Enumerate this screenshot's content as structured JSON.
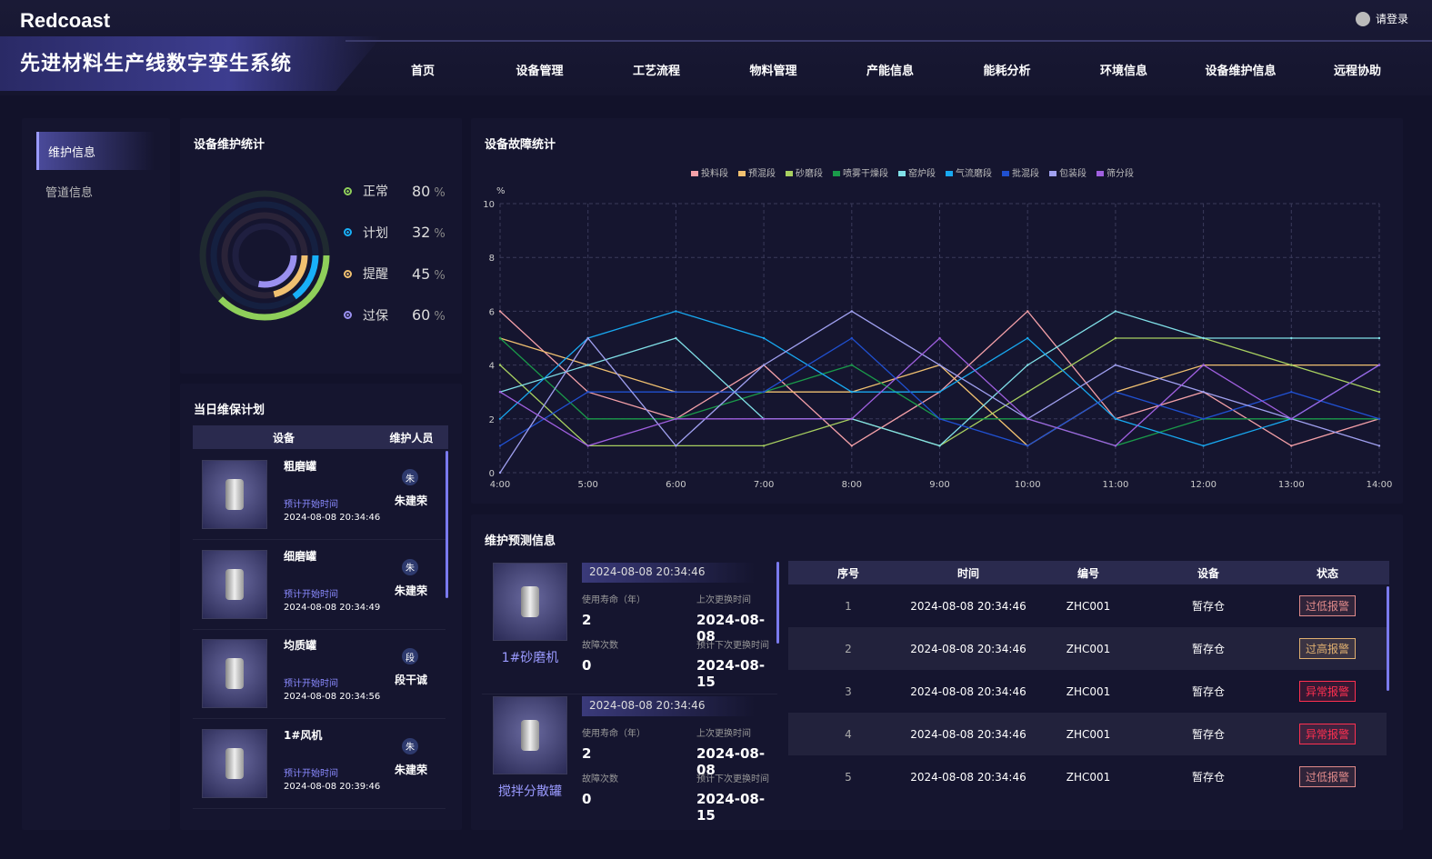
{
  "header": {
    "logo": "Redcoast",
    "title": "先进材料生产线数字孪生系统",
    "login": "请登录",
    "tabs": [
      "首页",
      "设备管理",
      "工艺流程",
      "物料管理",
      "产能信息",
      "能耗分析",
      "环境信息",
      "设备维护信息",
      "远程协助"
    ],
    "active_tab": 7
  },
  "sidebar": {
    "items": [
      "维护信息",
      "管道信息"
    ],
    "active": 0
  },
  "stats": {
    "title": "设备维护统计",
    "items": [
      {
        "label": "正常",
        "value": 80,
        "unit": "%",
        "color": "#8fcf5a"
      },
      {
        "label": "计划",
        "value": 32,
        "unit": "%",
        "color": "#18b0f8"
      },
      {
        "label": "提醒",
        "value": 45,
        "unit": "%",
        "color": "#f0c070"
      },
      {
        "label": "过保",
        "value": 60,
        "unit": "%",
        "color": "#9a90f0"
      }
    ]
  },
  "plan": {
    "title": "当日维保计划",
    "col_device": "设备",
    "col_person": "维护人员",
    "start_label": "预计开始时间",
    "rows": [
      {
        "name": "粗磨罐",
        "time": "2024-08-08 20:34:46",
        "avatar": "朱",
        "person": "朱建荣"
      },
      {
        "name": "细磨罐",
        "time": "2024-08-08 20:34:49",
        "avatar": "朱",
        "person": "朱建荣"
      },
      {
        "name": "均质罐",
        "time": "2024-08-08 20:34:56",
        "avatar": "段",
        "person": "段干诚"
      },
      {
        "name": "1#风机",
        "time": "2024-08-08 20:39:46",
        "avatar": "朱",
        "person": "朱建荣"
      }
    ]
  },
  "chart_data": {
    "type": "line",
    "title": "设备故障统计",
    "ylabel": "%",
    "ylim": [
      0,
      10
    ],
    "yticks": [
      "0",
      "2",
      "4",
      "6",
      "8",
      "10"
    ],
    "x": [
      "4:00",
      "5:00",
      "6:00",
      "7:00",
      "8:00",
      "9:00",
      "10:00",
      "11:00",
      "12:00",
      "13:00",
      "14:00"
    ],
    "grid": true,
    "legend_position": "top",
    "series": [
      {
        "name": "投料段",
        "color": "#f4a0a8",
        "values": [
          6,
          3,
          2,
          4,
          1,
          3,
          6,
          2,
          3,
          1,
          2
        ]
      },
      {
        "name": "预混段",
        "color": "#f0c070",
        "values": [
          5,
          4,
          3,
          3,
          3,
          4,
          1,
          3,
          4,
          4,
          4
        ]
      },
      {
        "name": "砂磨段",
        "color": "#a8d060",
        "values": [
          4,
          1,
          1,
          1,
          2,
          1,
          3,
          5,
          5,
          4,
          3
        ]
      },
      {
        "name": "喷雾干燥段",
        "color": "#1a9a4a",
        "values": [
          5,
          2,
          2,
          3,
          4,
          2,
          2,
          1,
          2,
          2,
          2
        ]
      },
      {
        "name": "窑炉段",
        "color": "#80e0e8",
        "values": [
          3,
          4,
          5,
          2,
          2,
          1,
          4,
          6,
          5,
          5,
          5
        ]
      },
      {
        "name": "气流磨段",
        "color": "#18a8f0",
        "values": [
          2,
          5,
          6,
          5,
          3,
          3,
          5,
          2,
          1,
          2,
          4
        ]
      },
      {
        "name": "批混段",
        "color": "#2050d0",
        "values": [
          1,
          3,
          3,
          3,
          5,
          2,
          1,
          3,
          2,
          3,
          2
        ]
      },
      {
        "name": "包装段",
        "color": "#a0a0f0",
        "values": [
          0,
          5,
          1,
          4,
          6,
          4,
          2,
          4,
          3,
          2,
          1
        ]
      },
      {
        "name": "筛分段",
        "color": "#a060e0",
        "values": [
          3,
          1,
          2,
          2,
          2,
          5,
          2,
          1,
          4,
          2,
          4
        ]
      }
    ]
  },
  "predict": {
    "title": "维护预测信息",
    "life_label": "使用寿命（年）",
    "last_label": "上次更换时间",
    "fault_label": "故障次数",
    "next_label": "预计下次更换时间",
    "cards": [
      {
        "name": "1#砂磨机",
        "timestamp": "2024-08-08 20:34:46",
        "life": "2",
        "last": "2024-08-08",
        "faults": "0",
        "next": "2024-08-15"
      },
      {
        "name": "搅拌分散罐",
        "timestamp": "2024-08-08 20:34:46",
        "life": "2",
        "last": "2024-08-08",
        "faults": "0",
        "next": "2024-08-15"
      }
    ]
  },
  "alarms": {
    "columns": [
      "序号",
      "时间",
      "编号",
      "设备",
      "状态"
    ],
    "rows": [
      {
        "no": "1",
        "time": "2024-08-08 20:34:46",
        "code": "ZHC001",
        "device": "暂存仓",
        "status": "过低报警",
        "color": "#e08a8a"
      },
      {
        "no": "2",
        "time": "2024-08-08 20:34:46",
        "code": "ZHC001",
        "device": "暂存仓",
        "status": "过高报警",
        "color": "#e0b070"
      },
      {
        "no": "3",
        "time": "2024-08-08 20:34:46",
        "code": "ZHC001",
        "device": "暂存仓",
        "status": "异常报警",
        "color": "#ff3050"
      },
      {
        "no": "4",
        "time": "2024-08-08 20:34:46",
        "code": "ZHC001",
        "device": "暂存仓",
        "status": "异常报警",
        "color": "#ff3050"
      },
      {
        "no": "5",
        "time": "2024-08-08 20:34:46",
        "code": "ZHC001",
        "device": "暂存仓",
        "status": "过低报警",
        "color": "#e08a8a"
      }
    ]
  }
}
